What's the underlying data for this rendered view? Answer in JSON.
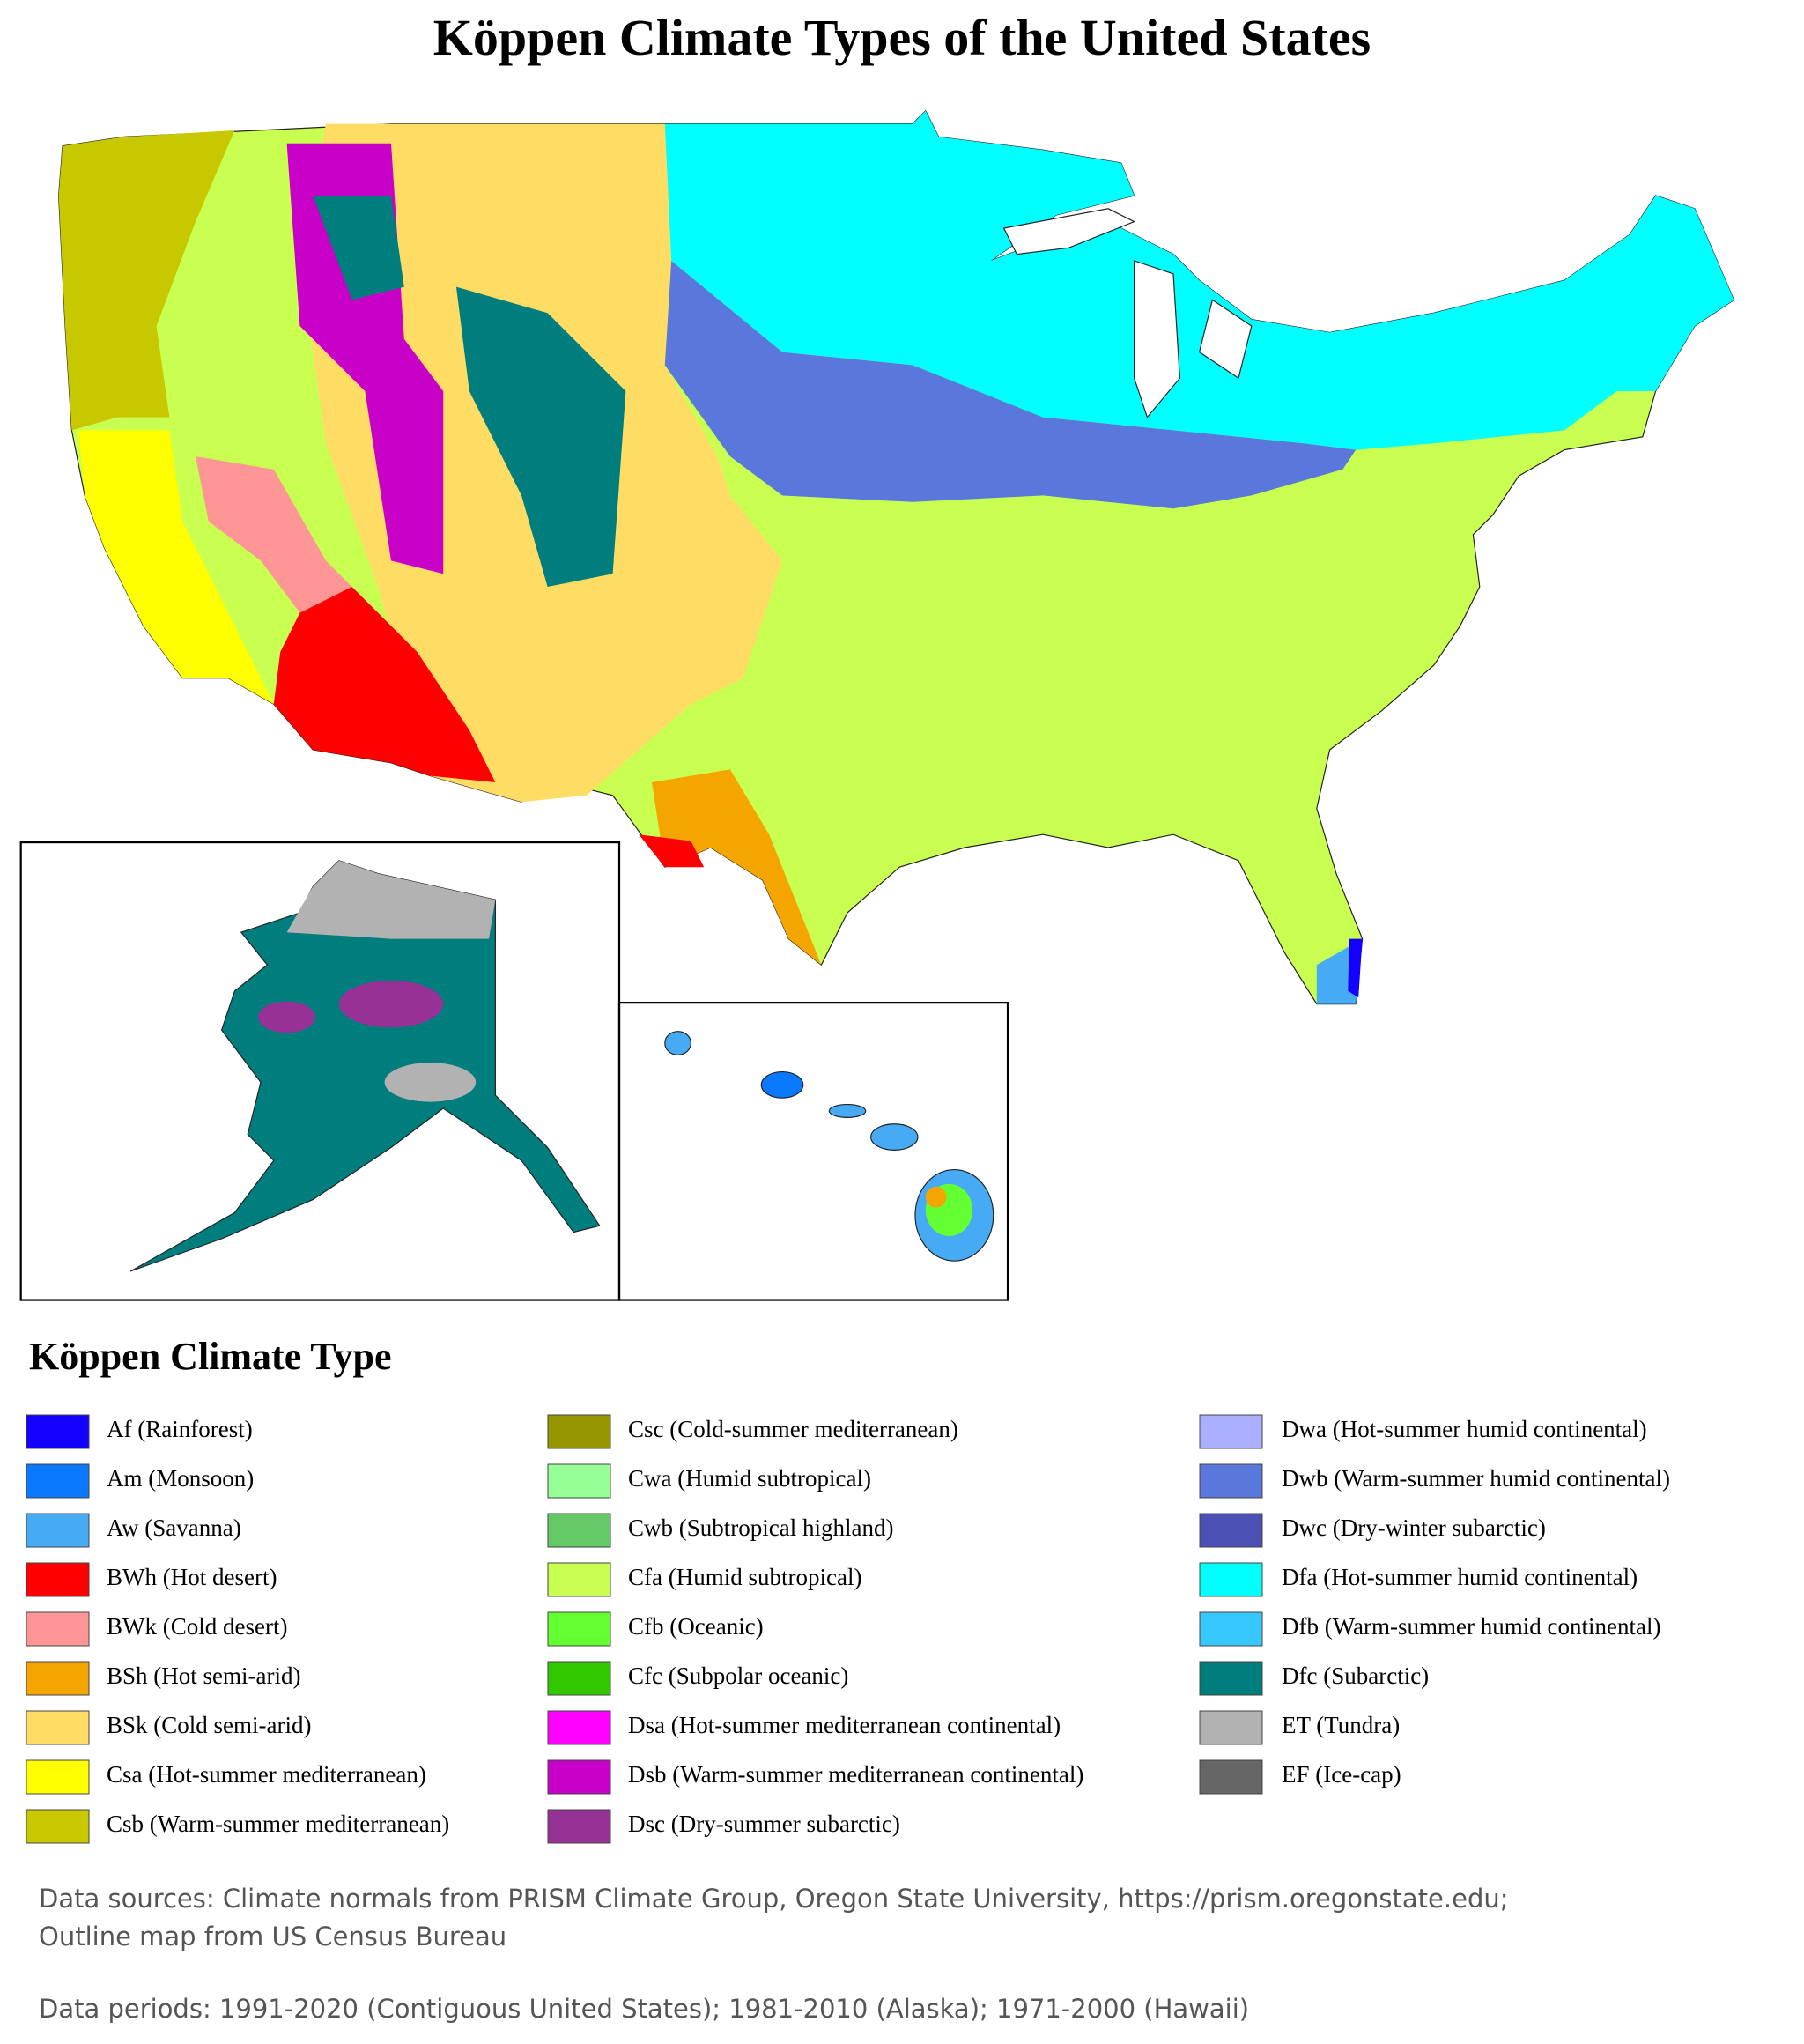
{
  "title": "Köppen Climate Types of the United States",
  "legend": {
    "title": "Köppen Climate Type",
    "items": [
      {
        "label": "Af (Rainforest)",
        "color": "#1400ff"
      },
      {
        "label": "Am (Monsoon)",
        "color": "#0a78ff"
      },
      {
        "label": "Aw (Savanna)",
        "color": "#46aaf5"
      },
      {
        "label": "BWh (Hot desert)",
        "color": "#ff0000"
      },
      {
        "label": "BWk (Cold desert)",
        "color": "#ff9696"
      },
      {
        "label": "BSh (Hot semi-arid)",
        "color": "#f5a500"
      },
      {
        "label": "BSk (Cold semi-arid)",
        "color": "#ffdc64"
      },
      {
        "label": "Csa (Hot-summer mediterranean)",
        "color": "#ffff00"
      },
      {
        "label": "Csb (Warm-summer mediterranean)",
        "color": "#c8c800"
      },
      {
        "label": "Csc (Cold-summer mediterranean)",
        "color": "#969600"
      },
      {
        "label": "Cwa (Humid subtropical)",
        "color": "#96ff96"
      },
      {
        "label": "Cwb (Subtropical highland)",
        "color": "#64c864"
      },
      {
        "label": "Cfa (Humid subtropical)",
        "color": "#c8ff50"
      },
      {
        "label": "Cfb (Oceanic)",
        "color": "#64ff32"
      },
      {
        "label": "Cfc (Subpolar oceanic)",
        "color": "#32c800"
      },
      {
        "label": "Dsa (Hot-summer mediterranean continental)",
        "color": "#ff00ff"
      },
      {
        "label": "Dsb (Warm-summer mediterranean continental)",
        "color": "#c800c8"
      },
      {
        "label": "Dsc (Dry-summer subarctic)",
        "color": "#963296"
      },
      {
        "label": "Dwa (Hot-summer humid continental)",
        "color": "#aaafff"
      },
      {
        "label": "Dwb (Warm-summer humid continental)",
        "color": "#5a78dc"
      },
      {
        "label": "Dwc (Dry-winter subarctic)",
        "color": "#4b50b4"
      },
      {
        "label": "Dfa (Hot-summer humid continental)",
        "color": "#00ffff"
      },
      {
        "label": "Dfb (Warm-summer humid continental)",
        "color": "#37c8ff"
      },
      {
        "label": "Dfc (Subarctic)",
        "color": "#007d7d"
      },
      {
        "label": "ET (Tundra)",
        "color": "#b2b2b2"
      },
      {
        "label": "EF (Ice-cap)",
        "color": "#666666"
      }
    ]
  },
  "sources": [
    "Data sources: Climate normals from PRISM Climate Group, Oregon State University, https://prism.oregonstate.edu;",
    "Outline map from US Census Bureau"
  ],
  "periods": "Data periods: 1991-2020 (Contiguous United States); 1981-2010 (Alaska); 1971-2000 (Hawaii)"
}
